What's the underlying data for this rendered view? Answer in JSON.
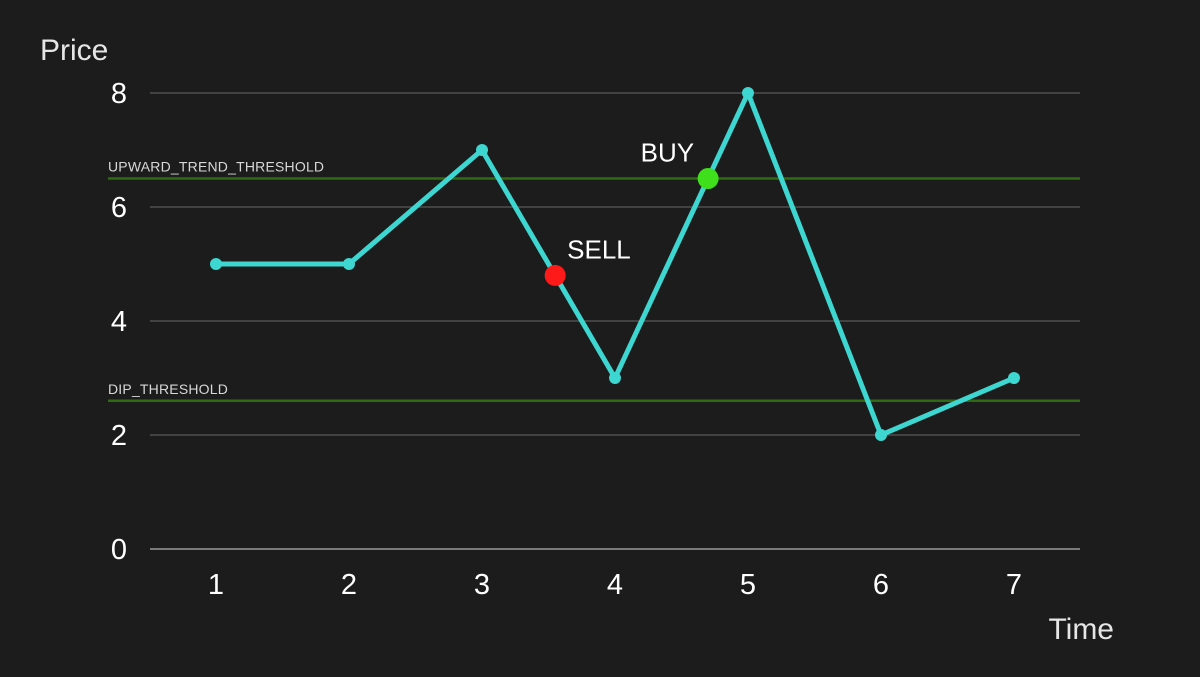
{
  "chart_data": {
    "type": "line",
    "xlabel": "Time",
    "ylabel": "Price",
    "x": [
      1,
      2,
      3,
      4,
      5,
      6,
      7
    ],
    "ylim": [
      0,
      8
    ],
    "yticks": [
      0,
      2,
      4,
      6,
      8
    ],
    "grid": true,
    "series": [
      {
        "values": [
          5,
          5,
          7,
          3,
          8,
          2,
          3
        ],
        "color": "#3dd6d0"
      }
    ],
    "thresholds": [
      {
        "label": "UPWARD_TREND_THRESHOLD",
        "value": 6.5,
        "color": "#2f6b12"
      },
      {
        "label": "DIP_THRESHOLD",
        "value": 2.6,
        "color": "#2f6b12"
      }
    ],
    "signals": [
      {
        "label": "SELL",
        "x": 3.55,
        "y": 4.8,
        "color": "#ff1a1a"
      },
      {
        "label": "BUY",
        "x": 4.7,
        "y": 6.5,
        "color": "#3fe01b"
      }
    ]
  },
  "colors": {
    "background": "#1c1c1c",
    "text": "#ffffff",
    "grid": "#5a5a5a"
  }
}
